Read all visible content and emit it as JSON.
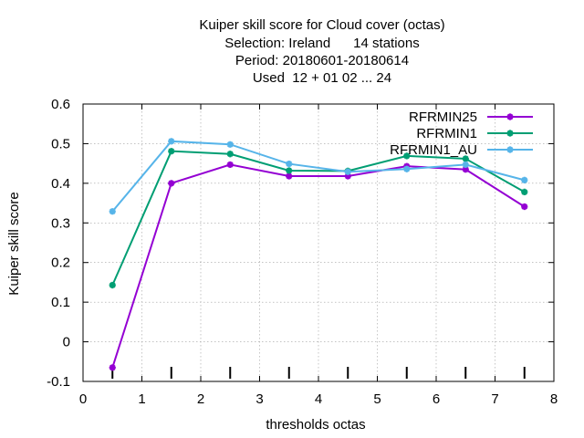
{
  "chart_data": {
    "type": "line",
    "title_lines": [
      "Kuiper skill score  for Cloud cover (octas)",
      "Selection: Ireland      14 stations",
      "Period: 20180601-20180614",
      "Used  12 + 01 02 ... 24"
    ],
    "xlabel": "thresholds octas",
    "ylabel": "Kuiper skill score",
    "xlim": [
      0,
      8
    ],
    "ylim": [
      -0.1,
      0.6
    ],
    "xticks": [
      0,
      1,
      2,
      3,
      4,
      5,
      6,
      7,
      8
    ],
    "yticks": [
      -0.1,
      0,
      0.1,
      0.2,
      0.3,
      0.4,
      0.5,
      0.6
    ],
    "xtick_labels": [
      "0",
      "1",
      "2",
      "3",
      "4",
      "5",
      "6",
      "7",
      "8"
    ],
    "ytick_labels": [
      "-0.1",
      "0",
      "0.1",
      "0.2",
      "0.3",
      "0.4",
      "0.5",
      "0.6"
    ],
    "grid": true,
    "legend_position": "top-right",
    "threshold_markers_x": [
      0.5,
      1.5,
      2.5,
      3.5,
      4.5,
      5.5,
      6.5,
      7.5
    ],
    "x": [
      0.5,
      1.5,
      2.5,
      3.5,
      4.5,
      5.5,
      6.5,
      7.5
    ],
    "series": [
      {
        "name": "RFRMIN25",
        "color": "#9400d3",
        "values": [
          -0.065,
          0.4,
          0.447,
          0.418,
          0.418,
          0.443,
          0.435,
          0.341
        ]
      },
      {
        "name": "RFRMIN1",
        "color": "#009e73",
        "values": [
          0.143,
          0.481,
          0.474,
          0.432,
          0.431,
          0.469,
          0.462,
          0.378
        ]
      },
      {
        "name": "RFRMIN1_AU",
        "color": "#56b4e9",
        "values": [
          0.329,
          0.506,
          0.498,
          0.449,
          0.429,
          0.436,
          0.447,
          0.408
        ]
      }
    ]
  }
}
